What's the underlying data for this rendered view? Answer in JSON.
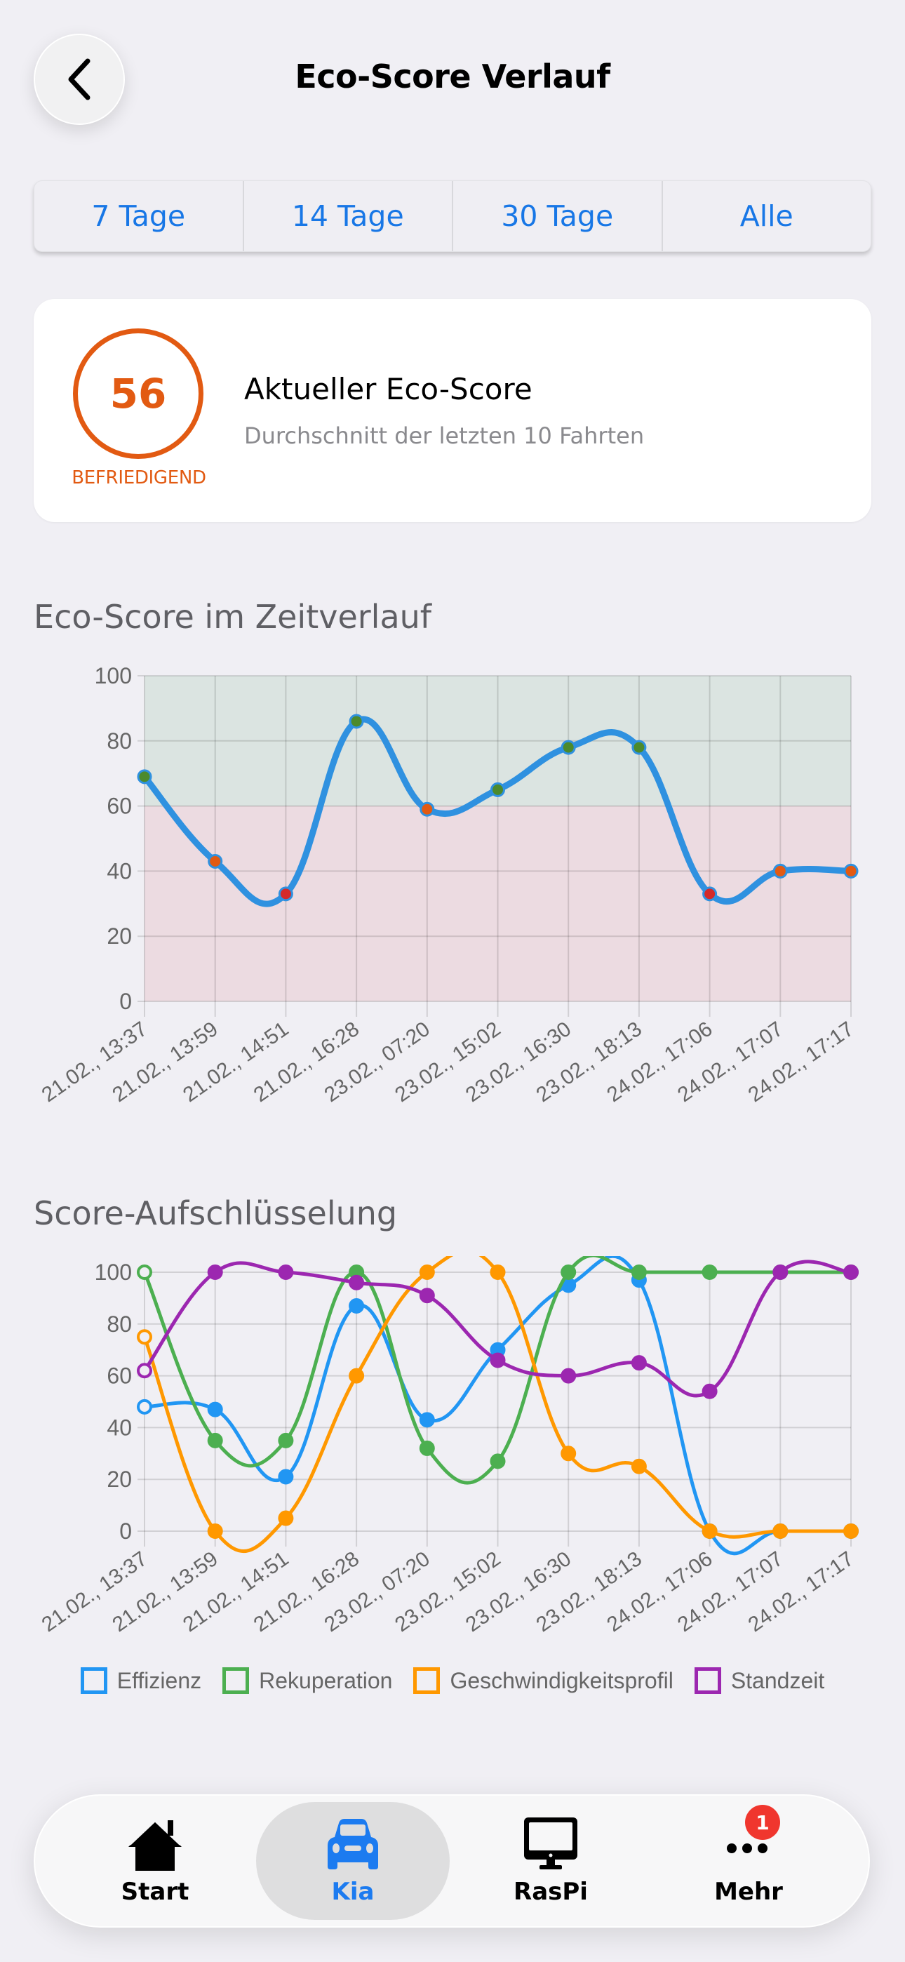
{
  "header": {
    "title": "Eco-Score Verlauf",
    "back_icon": "chevron-left-icon"
  },
  "range_tabs": [
    {
      "label": "7 Tage"
    },
    {
      "label": "14 Tage"
    },
    {
      "label": "30 Tage"
    },
    {
      "label": "Alle"
    }
  ],
  "score_card": {
    "value": "56",
    "grade": "BEFRIEDIGEND",
    "title": "Aktueller Eco-Score",
    "subtitle": "Durchschnitt der letzten 10 Fahrten",
    "color": "#e25a12"
  },
  "sections": {
    "timeline_title": "Eco-Score im Zeitverlauf",
    "breakdown_title": "Score-Aufschlüsselung"
  },
  "colors": {
    "accent": "#1877e6",
    "good_zone": "#dbe4e1",
    "bad_zone": "#ecdbe1",
    "line": "#2f91e0",
    "point_good": "#4c8a2c",
    "point_mid": "#e25a12",
    "point_bad": "#d42a2a"
  },
  "chart_data": [
    {
      "type": "line",
      "title": "Eco-Score im Zeitverlauf",
      "xlabel": "",
      "ylabel": "",
      "ylim": [
        0,
        100
      ],
      "yticks": [
        0,
        20,
        40,
        60,
        80,
        100
      ],
      "grid": true,
      "bands": [
        {
          "from": 60,
          "to": 100,
          "color": "#dbe4e1"
        },
        {
          "from": 0,
          "to": 60,
          "color": "#ecdbe1"
        }
      ],
      "categories": [
        "21.02., 13:37",
        "21.02., 13:59",
        "21.02., 14:51",
        "21.02., 16:28",
        "23.02., 07:20",
        "23.02., 15:02",
        "23.02., 16:30",
        "23.02., 18:13",
        "24.02., 17:06",
        "24.02., 17:07",
        "24.02., 17:17"
      ],
      "series": [
        {
          "name": "Eco-Score",
          "color": "#2f91e0",
          "values": [
            69,
            43,
            33,
            86,
            59,
            65,
            78,
            78,
            33,
            40,
            40
          ]
        }
      ]
    },
    {
      "type": "line",
      "title": "Score-Aufschlüsselung",
      "xlabel": "",
      "ylabel": "",
      "ylim": [
        0,
        100
      ],
      "yticks": [
        0,
        20,
        40,
        60,
        80,
        100
      ],
      "grid": true,
      "legend_position": "bottom",
      "categories": [
        "21.02., 13:37",
        "21.02., 13:59",
        "21.02., 14:51",
        "21.02., 16:28",
        "23.02., 07:20",
        "23.02., 15:02",
        "23.02., 16:30",
        "23.02., 18:13",
        "24.02., 17:06",
        "24.02., 17:07",
        "24.02., 17:17"
      ],
      "series": [
        {
          "name": "Effizienz",
          "color": "#2196f3",
          "values": [
            48,
            47,
            21,
            87,
            43,
            70,
            95,
            97,
            0,
            0,
            0
          ]
        },
        {
          "name": "Rekuperation",
          "color": "#4caf50",
          "values": [
            100,
            35,
            35,
            100,
            32,
            27,
            100,
            100,
            100,
            100,
            100
          ]
        },
        {
          "name": "Geschwindigkeitsprofil",
          "color": "#ff9800",
          "values": [
            75,
            0,
            5,
            60,
            100,
            100,
            30,
            25,
            0,
            0,
            0
          ]
        },
        {
          "name": "Standzeit",
          "color": "#9c27b0",
          "values": [
            62,
            100,
            100,
            96,
            91,
            66,
            60,
            65,
            54,
            100,
            100
          ]
        }
      ]
    }
  ],
  "tabbar": {
    "items": [
      {
        "label": "Start",
        "icon": "home-icon"
      },
      {
        "label": "Kia",
        "icon": "car-icon",
        "active": true
      },
      {
        "label": "RasPi",
        "icon": "desktop-icon"
      },
      {
        "label": "Mehr",
        "icon": "more-icon",
        "badge": "1"
      }
    ]
  }
}
